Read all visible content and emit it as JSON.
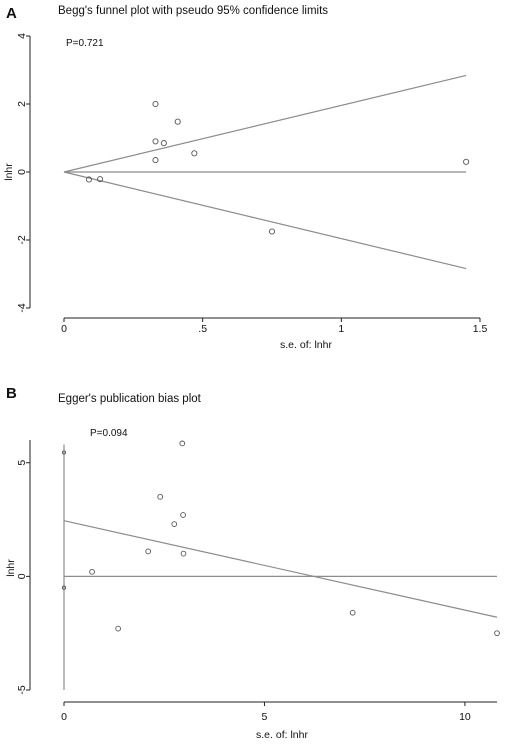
{
  "chart_data": [
    {
      "type": "scatter",
      "panel": "A",
      "title": "Begg's funnel plot with pseudo 95% confidence limits",
      "annotation": "P=0.721",
      "xlabel": "s.e. of: lnhr",
      "ylabel": "lnhr",
      "xlim": [
        0,
        1.5
      ],
      "ylim": [
        -4,
        4
      ],
      "x_ticks": [
        0,
        0.5,
        1,
        1.5
      ],
      "x_tick_labels": [
        "0",
        ".5",
        "1",
        "1.5"
      ],
      "y_ticks": [
        -4,
        -2,
        0,
        2,
        4
      ],
      "y_tick_labels": [
        "-4",
        "-2",
        "0",
        "2",
        "4"
      ],
      "points": [
        {
          "x": 0.09,
          "y": -0.22
        },
        {
          "x": 0.13,
          "y": -0.21
        },
        {
          "x": 0.33,
          "y": 2.0
        },
        {
          "x": 0.33,
          "y": 0.9
        },
        {
          "x": 0.33,
          "y": 0.35
        },
        {
          "x": 0.36,
          "y": 0.85
        },
        {
          "x": 0.41,
          "y": 1.48
        },
        {
          "x": 0.47,
          "y": 0.55
        },
        {
          "x": 0.75,
          "y": -1.75
        },
        {
          "x": 1.45,
          "y": 0.3
        }
      ],
      "lines": [
        {
          "name": "upper-limit",
          "x": [
            0,
            1.45
          ],
          "y": [
            0,
            2.84
          ]
        },
        {
          "name": "pooled",
          "x": [
            0,
            1.45
          ],
          "y": [
            0,
            0
          ]
        },
        {
          "name": "lower-limit",
          "x": [
            0,
            1.45
          ],
          "y": [
            0,
            -2.84
          ]
        }
      ],
      "grid": false
    },
    {
      "type": "scatter",
      "panel": "B",
      "title": "Egger's publication bias plot",
      "annotation": "P=0.094",
      "xlabel": "s.e. of: lnhr",
      "ylabel": "lnhr",
      "xlim": [
        0,
        10.8
      ],
      "ylim": [
        -5,
        6
      ],
      "x_ticks": [
        0,
        5,
        10
      ],
      "x_tick_labels": [
        "0",
        "5",
        "10"
      ],
      "y_ticks": [
        -5,
        0,
        5
      ],
      "y_tick_labels": [
        "-5",
        "0",
        "5"
      ],
      "points": [
        {
          "x": 0.7,
          "y": 0.2
        },
        {
          "x": 1.35,
          "y": -2.3
        },
        {
          "x": 2.1,
          "y": 1.1
        },
        {
          "x": 2.4,
          "y": 3.5
        },
        {
          "x": 2.75,
          "y": 2.3
        },
        {
          "x": 2.95,
          "y": 5.85
        },
        {
          "x": 2.97,
          "y": 2.7
        },
        {
          "x": 2.98,
          "y": 1.0
        },
        {
          "x": 7.2,
          "y": -1.6
        },
        {
          "x": 10.8,
          "y": -2.5
        }
      ],
      "intercept_markers": [
        {
          "x": 0,
          "y": 5.45
        },
        {
          "x": 0,
          "y": -0.5
        }
      ],
      "intercept_ci": {
        "x": 0,
        "y": [
          -5,
          5.8
        ]
      },
      "lines": [
        {
          "name": "regression",
          "x": [
            0,
            10.8
          ],
          "y": [
            2.45,
            -1.8
          ]
        },
        {
          "name": "zero",
          "x": [
            0,
            10.8
          ],
          "y": [
            0,
            0
          ]
        }
      ],
      "grid": false
    }
  ]
}
